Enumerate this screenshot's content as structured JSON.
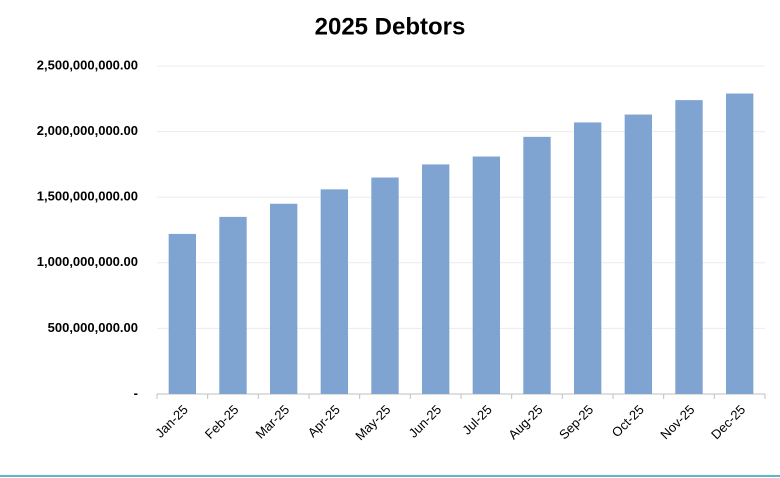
{
  "chart_data": {
    "type": "bar",
    "title": "2025 Debtors",
    "categories": [
      "Jan-25",
      "Feb-25",
      "Mar-25",
      "Apr-25",
      "May-25",
      "Jun-25",
      "Jul-25",
      "Aug-25",
      "Sep-25",
      "Oct-25",
      "Nov-25",
      "Dec-25"
    ],
    "values": [
      1220000000,
      1350000000,
      1450000000,
      1560000000,
      1650000000,
      1750000000,
      1810000000,
      1960000000,
      2070000000,
      2130000000,
      2240000000,
      2290000000
    ],
    "color": "#7fa4d1",
    "ylim": [
      0,
      2500000000
    ],
    "yticks": [
      {
        "value": 0,
        "label": "-"
      },
      {
        "value": 500000000,
        "label": "500,000,000.00"
      },
      {
        "value": 1000000000,
        "label": "1,000,000,000.00"
      },
      {
        "value": 1500000000,
        "label": "1,500,000,000.00"
      },
      {
        "value": 2000000000,
        "label": "2,000,000,000.00"
      },
      {
        "value": 2500000000,
        "label": "2,500,000,000.00"
      }
    ],
    "grid": true
  }
}
